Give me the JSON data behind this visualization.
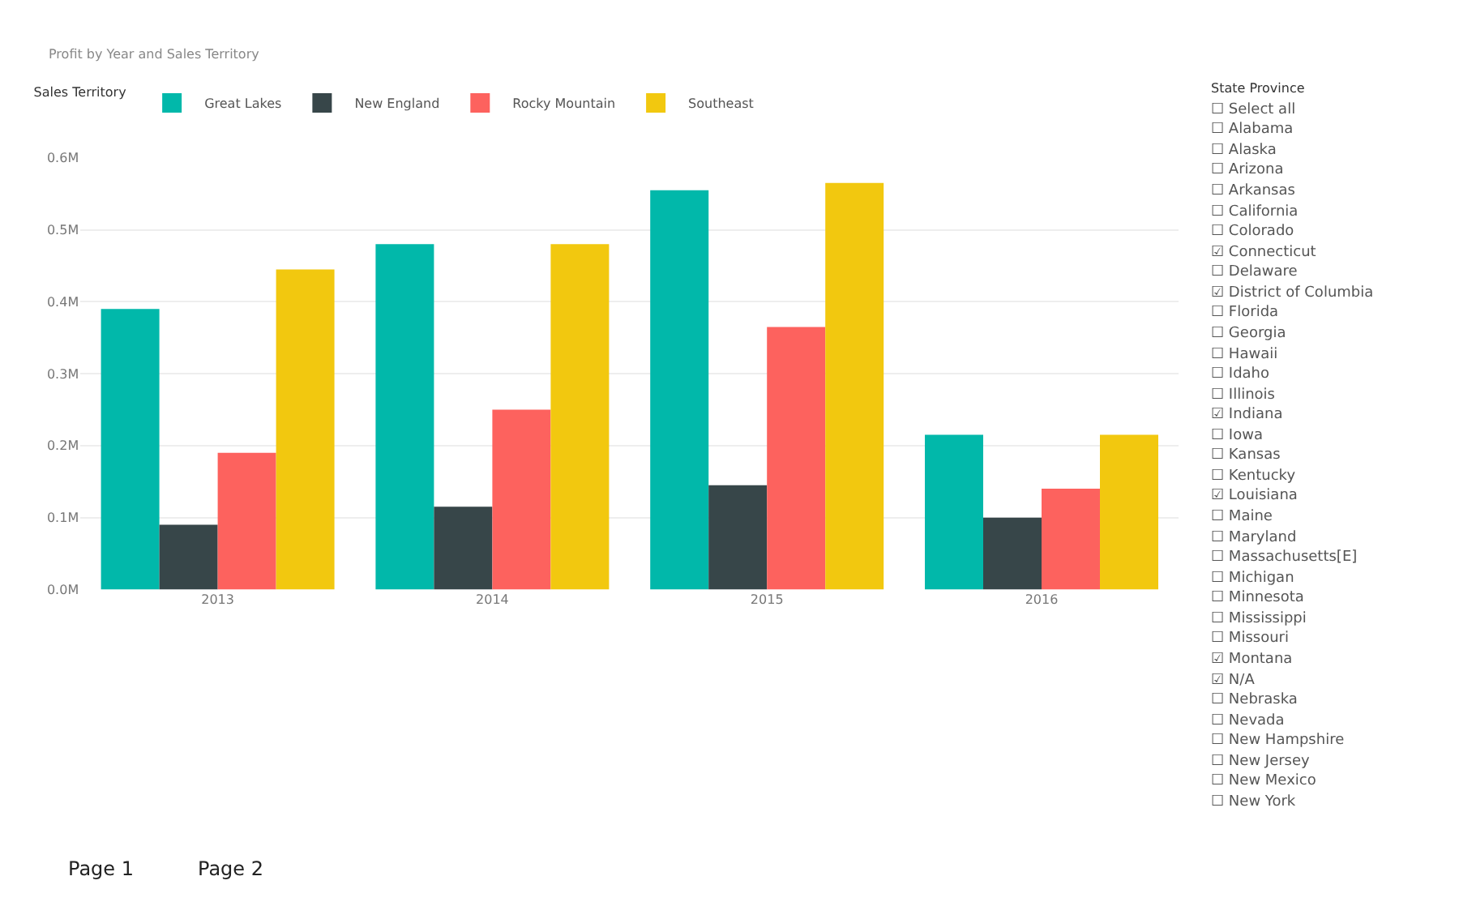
{
  "chart_data": [
    {
      "type": "bar",
      "title": "Profit by Year and Sales Territory",
      "legend_title": "Sales Territory",
      "legend": "top left",
      "grid": "y",
      "categories": [
        "2013",
        "2014",
        "2015",
        "2016"
      ],
      "series": [
        {
          "name": "Great Lakes",
          "color": "#01b8aa",
          "values": [
            0.39,
            0.48,
            0.555,
            0.215
          ]
        },
        {
          "name": "New England",
          "color": "#374649",
          "values": [
            0.09,
            0.115,
            0.145,
            0.1
          ]
        },
        {
          "name": "Rocky Mountain",
          "color": "#fd625e",
          "values": [
            0.19,
            0.25,
            0.365,
            0.14
          ]
        },
        {
          "name": "Southeast",
          "color": "#f2c80f",
          "values": [
            0.445,
            0.48,
            0.565,
            0.215
          ]
        }
      ],
      "ylim": [
        0,
        0.6
      ],
      "yticks": [
        {
          "value": 0,
          "label": "0.0M"
        },
        {
          "value": 0.1,
          "label": "0.1M"
        },
        {
          "value": 0.2,
          "label": "0.2M"
        },
        {
          "value": 0.3,
          "label": "0.3M"
        },
        {
          "value": 0.4,
          "label": "0.4M"
        },
        {
          "value": 0.5,
          "label": "0.5M"
        },
        {
          "value": 0.6,
          "label": "0.6M"
        }
      ]
    },
    {
      "type": "other",
      "title": "State Province",
      "annotations": [
        "☐ Select all",
        "☐ Alabama",
        "☐ Alaska",
        "☐ Arizona",
        "☐ Arkansas",
        "☐ California",
        "☐ Colorado",
        "☑ Connecticut",
        "☐ Delaware",
        "☑ District of Columbia",
        "☐ Florida",
        "☐ Georgia",
        "☐ Hawaii",
        "☐ Idaho",
        "☐ Illinois",
        "☑ Indiana",
        "☐ Iowa",
        "☐ Kansas",
        "☐ Kentucky",
        "☑ Louisiana",
        "☐ Maine",
        "☐ Maryland",
        "☐ Massachusetts[E]",
        "☐ Michigan",
        "☐ Minnesota",
        "☐ Mississippi",
        "☐ Missouri",
        "☑ Montana",
        "☑ N/A",
        "☐ Nebraska",
        "☐ Nevada",
        "☐ New Hampshire",
        "☐ New Jersey",
        "☐ New Mexico",
        "☐ New York",
        "Page 1",
        "Page 2"
      ]
    }
  ]
}
